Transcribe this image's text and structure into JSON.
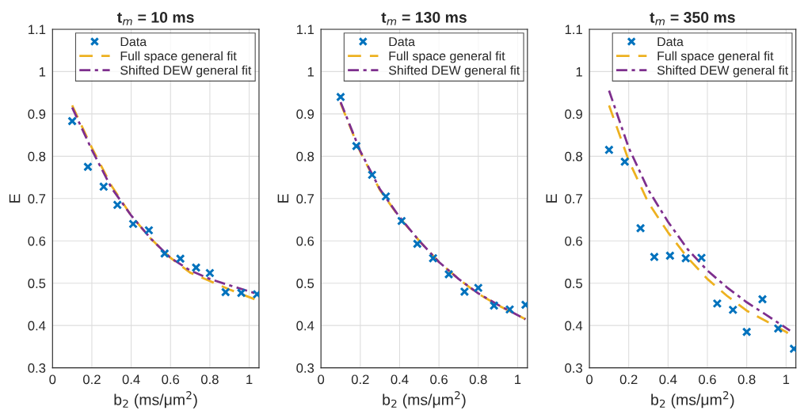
{
  "chart_data": [
    {
      "type": "scatter",
      "title": "t$_{m}$ = 10 ms",
      "xlabel": "b$_{2}$ (ms/μm$^{2}$)",
      "ylabel": "E",
      "xlim": [
        0,
        1.05
      ],
      "ylim": [
        0.3,
        1.1
      ],
      "xticks": [
        0,
        0.2,
        0.4,
        0.6,
        0.8,
        1
      ],
      "yticks": [
        0.3,
        0.4,
        0.5,
        0.6,
        0.7,
        0.8,
        0.9,
        1,
        1.1
      ],
      "grid": true,
      "legend": "top right",
      "series": [
        {
          "name": "Data",
          "marker": "cross",
          "color": "#0072bd",
          "x": [
            0.1,
            0.18,
            0.26,
            0.33,
            0.41,
            0.49,
            0.57,
            0.65,
            0.73,
            0.8,
            0.88,
            0.96,
            1.04
          ],
          "values": [
            0.883,
            0.775,
            0.728,
            0.685,
            0.64,
            0.625,
            0.57,
            0.558,
            0.537,
            0.524,
            0.479,
            0.477,
            0.474
          ]
        },
        {
          "name": "Full space general fit",
          "type": "line",
          "line_style": "dashed",
          "color": "#edb120",
          "x": [
            0.1,
            0.2,
            0.3,
            0.4,
            0.5,
            0.6,
            0.7,
            0.8,
            0.9,
            1.04
          ],
          "values": [
            0.92,
            0.82,
            0.73,
            0.66,
            0.605,
            0.56,
            0.525,
            0.505,
            0.485,
            0.46
          ]
        },
        {
          "name": "Shifted DEW general fit",
          "type": "line",
          "line_style": "dashdot",
          "color": "#7e2f8e",
          "x": [
            0.1,
            0.2,
            0.3,
            0.4,
            0.5,
            0.6,
            0.7,
            0.8,
            0.9,
            1.04
          ],
          "values": [
            0.915,
            0.815,
            0.725,
            0.66,
            0.605,
            0.56,
            0.53,
            0.51,
            0.495,
            0.475
          ]
        }
      ]
    },
    {
      "type": "scatter",
      "title": "t$_{m}$ = 130 ms",
      "xlabel": "b$_{2}$ (ms/μm$^{2}$)",
      "ylabel": "E",
      "xlim": [
        0,
        1.05
      ],
      "ylim": [
        0.3,
        1.1
      ],
      "xticks": [
        0,
        0.2,
        0.4,
        0.6,
        0.8,
        1
      ],
      "yticks": [
        0.3,
        0.4,
        0.5,
        0.6,
        0.7,
        0.8,
        0.9,
        1,
        1.1
      ],
      "grid": true,
      "legend": "top right",
      "series": [
        {
          "name": "Data",
          "marker": "cross",
          "color": "#0072bd",
          "x": [
            0.1,
            0.18,
            0.26,
            0.33,
            0.41,
            0.49,
            0.57,
            0.65,
            0.73,
            0.8,
            0.88,
            0.96,
            1.04
          ],
          "values": [
            0.94,
            0.824,
            0.756,
            0.705,
            0.647,
            0.593,
            0.559,
            0.521,
            0.48,
            0.489,
            0.447,
            0.438,
            0.449
          ]
        },
        {
          "name": "Full space general fit",
          "type": "line",
          "line_style": "dashed",
          "color": "#edb120",
          "x": [
            0.1,
            0.2,
            0.3,
            0.4,
            0.5,
            0.6,
            0.7,
            0.8,
            0.9,
            1.04
          ],
          "values": [
            0.925,
            0.81,
            0.72,
            0.655,
            0.6,
            0.55,
            0.51,
            0.475,
            0.448,
            0.415
          ]
        },
        {
          "name": "Shifted DEW general fit",
          "type": "line",
          "line_style": "dashdot",
          "color": "#7e2f8e",
          "x": [
            0.1,
            0.2,
            0.3,
            0.4,
            0.5,
            0.6,
            0.7,
            0.8,
            0.9,
            1.04
          ],
          "values": [
            0.928,
            0.812,
            0.722,
            0.656,
            0.6,
            0.55,
            0.51,
            0.476,
            0.449,
            0.415
          ]
        }
      ]
    },
    {
      "type": "scatter",
      "title": "t$_{m}$ = 350 ms",
      "xlabel": "b$_{2}$ (ms/μm$^{2}$)",
      "ylabel": "E",
      "xlim": [
        0,
        1.05
      ],
      "ylim": [
        0.3,
        1.1
      ],
      "xticks": [
        0,
        0.2,
        0.4,
        0.6,
        0.8,
        1
      ],
      "yticks": [
        0.3,
        0.4,
        0.5,
        0.6,
        0.7,
        0.8,
        0.9,
        1,
        1.1
      ],
      "grid": true,
      "legend": "top right",
      "series": [
        {
          "name": "Data",
          "marker": "cross",
          "color": "#0072bd",
          "x": [
            0.1,
            0.18,
            0.26,
            0.33,
            0.41,
            0.49,
            0.57,
            0.65,
            0.73,
            0.8,
            0.88,
            0.96,
            1.04
          ],
          "values": [
            0.815,
            0.787,
            0.63,
            0.562,
            0.565,
            0.559,
            0.56,
            0.452,
            0.437,
            0.385,
            0.462,
            0.393,
            0.345
          ]
        },
        {
          "name": "Full space general fit",
          "type": "line",
          "line_style": "dashed",
          "color": "#edb120",
          "x": [
            0.1,
            0.2,
            0.3,
            0.4,
            0.5,
            0.6,
            0.7,
            0.8,
            0.9,
            1.0,
            1.02
          ],
          "values": [
            0.92,
            0.79,
            0.69,
            0.62,
            0.56,
            0.51,
            0.47,
            0.435,
            0.41,
            0.385,
            0.378
          ]
        },
        {
          "name": "Shifted DEW general fit",
          "type": "line",
          "line_style": "dashdot",
          "color": "#7e2f8e",
          "x": [
            0.1,
            0.2,
            0.3,
            0.4,
            0.5,
            0.6,
            0.7,
            0.8,
            0.9,
            1.02
          ],
          "values": [
            0.955,
            0.82,
            0.72,
            0.645,
            0.58,
            0.53,
            0.49,
            0.455,
            0.425,
            0.388
          ]
        }
      ]
    }
  ]
}
